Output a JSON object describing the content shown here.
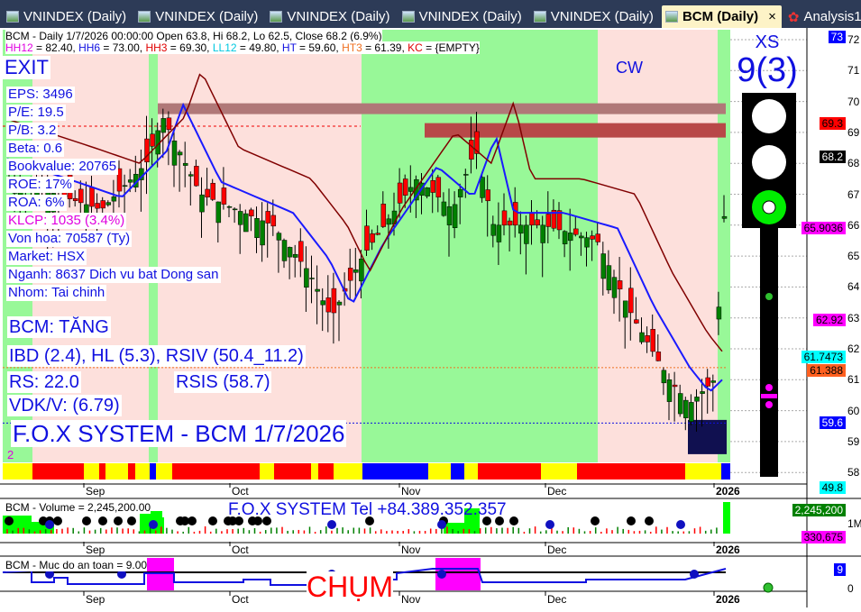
{
  "tabs": [
    {
      "label": "VNINDEX (Daily)"
    },
    {
      "label": "VNINDEX (Daily)"
    },
    {
      "label": "VNINDEX (Daily)"
    },
    {
      "label": "VNINDEX (Daily)"
    },
    {
      "label": "VNINDEX (Daily)"
    },
    {
      "label": "BCM (Daily)",
      "active": true,
      "close": "×"
    },
    {
      "label": "Analysis1"
    }
  ],
  "header": {
    "line1": "BCM - Daily 1/7/2026 00:00:00 Open 63.8, Hi 68.2, Lo 62.5, Close 68.2 (6.9%)",
    "line2": [
      {
        "k": "HH12",
        "v": " = 82.40, ",
        "c": "#e000e0"
      },
      {
        "k": "HH6",
        "v": " = 73.00, ",
        "c": "#1010e0"
      },
      {
        "k": "HH3",
        "v": " = 69.30, ",
        "c": "#e00000"
      },
      {
        "k": "LL12",
        "v": " = 49.80, ",
        "c": "#00c8e0"
      },
      {
        "k": "HT",
        "v": "  = 59.60, ",
        "c": "#1010e0"
      },
      {
        "k": "HT3",
        "v": "  = 61.39, ",
        "c": "#f07020"
      },
      {
        "k": "KC",
        "v": " = {EMPTY}",
        "c": "#e00000"
      }
    ]
  },
  "signal": "EXIT",
  "zone": "CW",
  "fundamentals": {
    "eps": "EPS: 3496",
    "pe": "P/E: 19.5",
    "pb": "P/B: 3.2",
    "beta": "Beta: 0.6",
    "bookvalue": "Bookvalue: 20765",
    "roe": "ROE: 17%",
    "roa": "ROA: 6%",
    "klcp": "KLCP: 1035 (3.4%)",
    "vonhoa": "Von hoa: 70587 (Ty)",
    "market": "Market: HSX",
    "nganh": "Nganh: 8637 Dich vu bat Dong san",
    "nhom": "Nhom: Tai chinh"
  },
  "status": {
    "trend": "BCM: TĂNG",
    "ibd": "IBD (2.4), HL (5.3), RSIV (50.4_11.2)",
    "rs": "RS: 22.0",
    "rsis": "RSIS (58.7)",
    "vdk": "VDK/V:  (6.79)",
    "title": "F.O.X SYSTEM - BCM 1/7/2026",
    "count": "2"
  },
  "xs": {
    "label": "XS",
    "value": "9(3)"
  },
  "traffic_light": {
    "red": false,
    "yellow": false,
    "green": true
  },
  "price_axis": {
    "ticks": [
      "72",
      "71",
      "70",
      "69",
      "68",
      "67",
      "66",
      "65",
      "64",
      "63",
      "62",
      "61",
      "60",
      "59",
      "58"
    ]
  },
  "price_tags": [
    {
      "v": "73",
      "bg": "#0000ff",
      "fg": "#fff",
      "p": 72.1
    },
    {
      "v": "69.3",
      "bg": "#ff0000",
      "fg": "#000",
      "p": 69.3
    },
    {
      "v": "68.2",
      "bg": "#000",
      "fg": "#fff",
      "p": 68.2
    },
    {
      "v": "65.9036",
      "bg": "#ff00ff",
      "fg": "#000",
      "p": 65.9
    },
    {
      "v": "62.92",
      "bg": "#ff00ff",
      "fg": "#000",
      "p": 62.92
    },
    {
      "v": "61.7473",
      "bg": "#00ffff",
      "fg": "#000",
      "p": 61.75
    },
    {
      "v": "61.388",
      "bg": "#ff6020",
      "fg": "#000",
      "p": 61.39
    },
    {
      "v": "59.6",
      "bg": "#0000ff",
      "fg": "#fff",
      "p": 59.6
    },
    {
      "v": "49.8",
      "bg": "#00ffff",
      "fg": "#000",
      "p": 57.5
    }
  ],
  "months": [
    "Sep",
    "Oct",
    "Nov",
    "Dec",
    "2026"
  ],
  "volume": {
    "title": "BCM - Volume = 2,245,200.00",
    "banner": "F.O.X SYSTEM Tel +84.389.352.357",
    "tag1": "2,245,200",
    "tag2": "330,675",
    "tick": "1M"
  },
  "safety": {
    "title": "BCM - Muc do an toan = 9.00",
    "chum": "CHỤM",
    "tag": "9",
    "tick": "0"
  },
  "colors": {
    "up": "#008000",
    "down": "#ff0000",
    "green_zone": "#98f898",
    "pink_zone": "#fde0dc",
    "accent": "#1010e0"
  }
}
